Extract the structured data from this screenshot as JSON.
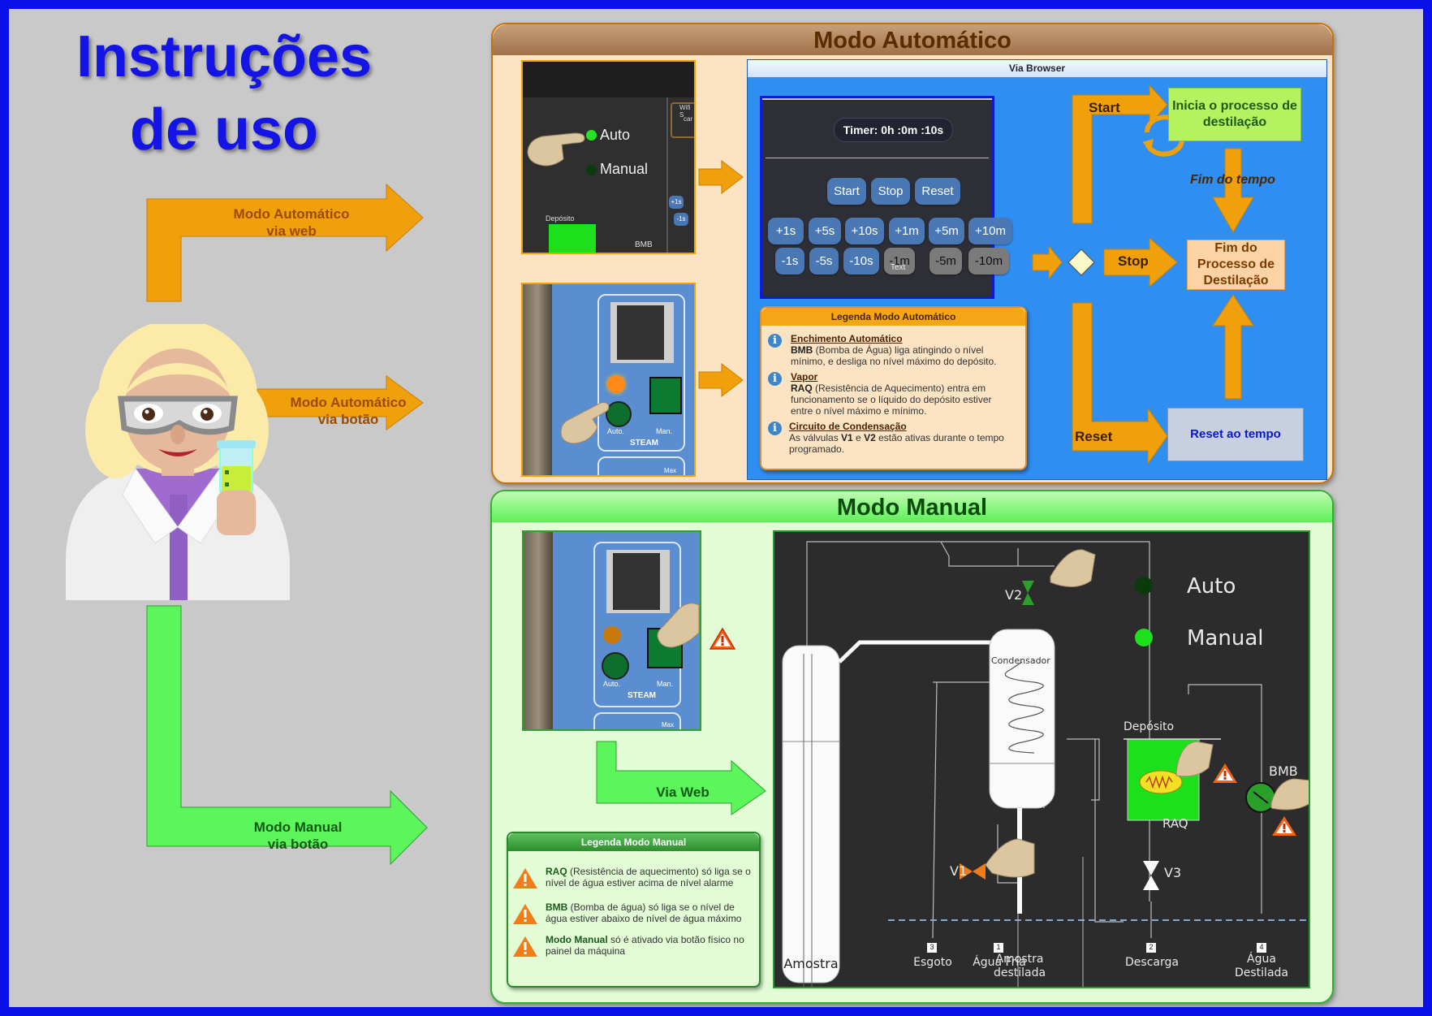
{
  "title": {
    "line1": "Instruções",
    "line2": "de uso"
  },
  "left_arrows": {
    "auto_web": {
      "line1": "Modo Automático",
      "line2": "via web"
    },
    "auto_button": {
      "line1": "Modo Automático",
      "line2": "via botão"
    },
    "manual_button": {
      "line1": "Modo Manual",
      "line2": "via botão"
    }
  },
  "auto_panel": {
    "title": "Modo Automático",
    "photo1": {
      "auto": "Auto",
      "manual": "Manual",
      "deposito": "Depósito",
      "bmb": "BMB",
      "wifi": "Wifi S",
      "car": "car",
      "plus1s": "+1s",
      "minus1s": "-1s"
    },
    "photo2": {
      "auto": "Auto.",
      "man": "Man.",
      "steam": "STEAM",
      "max": "Max"
    },
    "browser": {
      "title": "Via Browser",
      "timer": "Timer: 0h :0m :10s",
      "controls": [
        "Start",
        "Stop",
        "Reset"
      ],
      "plus": [
        "+1s",
        "+5s",
        "+10s",
        "+1m",
        "+5m",
        "+10m"
      ],
      "minus": [
        "-1s",
        "-5s",
        "-10s",
        "-1m",
        "-5m",
        "-10m"
      ],
      "text_tag": "Text"
    },
    "legend": {
      "title": "Legenda Modo Automático",
      "items": [
        {
          "heading": "Enchimento Automático",
          "bold": "BMB",
          "text1": " (Bomba de Água) liga atingindo o nível",
          "text2": "mínimo, e desliga no nível máximo do depósito."
        },
        {
          "heading": "Vapor",
          "bold": "RAQ",
          "text1": " (Resistência de Aquecimento) entra em",
          "text2": "funcionamento se o líquido do depósito estiver",
          "text3": "entre o nível máximo e mínimo."
        },
        {
          "heading": "Circuito de Condensação",
          "pre": "As válvulas ",
          "bold1": "V1",
          "mid": " e ",
          "bold2": "V2",
          "post": " estão ativas durante o tempo",
          "text2": "programado."
        }
      ]
    },
    "flow": {
      "start": "Start",
      "stop": "Stop",
      "reset": "Reset",
      "inicia": "Inicia o processo de destilação",
      "fim_tempo": "Fim do tempo",
      "fim_processo": "Fim do Processo de Destilação",
      "reset_tempo": "Reset ao tempo"
    }
  },
  "manual_panel": {
    "title": "Modo Manual",
    "photo": {
      "auto": "Auto.",
      "man": "Man.",
      "steam": "STEAM",
      "max": "Max"
    },
    "via_web": "Via Web",
    "legend": {
      "title": "Legenda Modo Manual",
      "items": [
        {
          "bold": "RAQ",
          "text1": " (Resistência de aquecimento) só liga se o",
          "text2": "nível de água estiver acima de nível alarme"
        },
        {
          "bold": "BMB",
          "text1": " (Bomba de água) só liga se o nível de",
          "text2": "água estiver abaixo de nível de água máximo"
        },
        {
          "bold": "Modo Manual",
          "text1": " só é ativado via botão físico no",
          "text2": "painel da máquina"
        }
      ]
    },
    "diagram": {
      "auto": "Auto",
      "manual": "Manual",
      "v1": "V1",
      "v2": "V2",
      "v3": "V3",
      "condensador": "Condensador",
      "deposito": "Depósito",
      "raq": "RAQ",
      "bmb": "BMB",
      "amostra": "Amostra",
      "outlets": [
        {
          "num": "3",
          "line1": "Esgoto",
          "line2": ""
        },
        {
          "num": "1",
          "line1": "Água Fria",
          "line2": ""
        },
        {
          "num": "",
          "line1": "Amostra",
          "line2": "destilada"
        },
        {
          "num": "2",
          "line1": "Descarga",
          "line2": ""
        },
        {
          "num": "4",
          "line1": "Água",
          "line2": "Destilada"
        }
      ]
    }
  },
  "colors": {
    "frame": "#0a10e8",
    "background": "#c9c9c9",
    "title": "#1414e6",
    "orange": "#f0a00a",
    "green": "#5cf55c",
    "browser_blue": "#2e8ef2",
    "diagram_bg": "#2c2c2c"
  }
}
